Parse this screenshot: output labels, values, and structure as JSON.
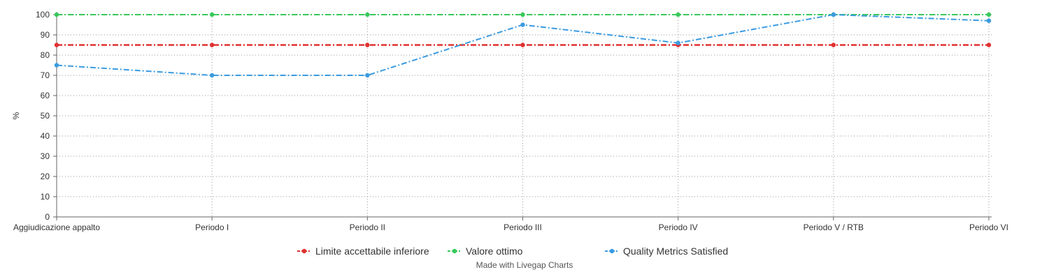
{
  "chart_data": {
    "type": "line",
    "title": "",
    "xlabel": "",
    "ylabel": "%",
    "ylim": [
      0,
      100
    ],
    "yticks": [
      0,
      10,
      20,
      30,
      40,
      50,
      60,
      70,
      80,
      90,
      100
    ],
    "grid": true,
    "legend_position": "bottom-center",
    "categories": [
      "Aggiudicazione appalto",
      "Periodo I",
      "Periodo II",
      "Periodo III",
      "Periodo IV",
      "Periodo V / RTB",
      "Periodo VI"
    ],
    "series": [
      {
        "name": "Limite accettabile inferiore",
        "color": "#e03131",
        "values": [
          85,
          85,
          85,
          85,
          85,
          85,
          85
        ]
      },
      {
        "name": "Valore ottimo",
        "color": "#37c95a",
        "values": [
          100,
          100,
          100,
          100,
          100,
          100,
          100
        ]
      },
      {
        "name": "Quality Metrics Satisfied",
        "color": "#3a9be0",
        "values": [
          75,
          70,
          70,
          95,
          86,
          100,
          97
        ]
      }
    ]
  },
  "credit": "Made with Livegap Charts"
}
